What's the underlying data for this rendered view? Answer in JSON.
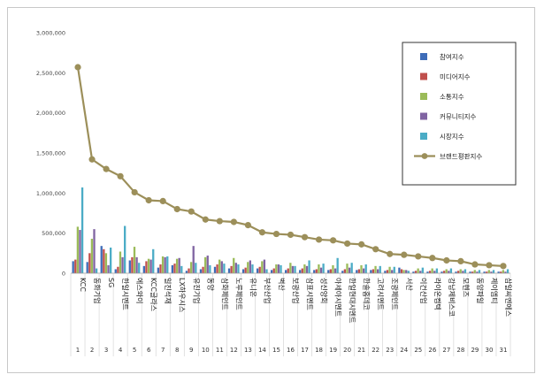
{
  "chart_data": {
    "type": "bar",
    "title": "",
    "xlabel": "",
    "ylabel": "",
    "ylim": [
      0,
      3000000
    ],
    "y_ticks": [
      "0",
      "500,000",
      "1,000,000",
      "1,500,000",
      "2,000,000",
      "2,500,000",
      "3,000,000"
    ],
    "y_tick_values": [
      0,
      500000,
      1000000,
      1500000,
      2000000,
      2500000,
      3000000
    ],
    "grid": false,
    "legend_position": "top-right",
    "indices": [
      "1",
      "2",
      "3",
      "4",
      "5",
      "6",
      "7",
      "8",
      "9",
      "10",
      "11",
      "12",
      "13",
      "14",
      "15",
      "16",
      "17",
      "18",
      "19",
      "20",
      "21",
      "22",
      "23",
      "24",
      "25",
      "26",
      "27",
      "28",
      "29",
      "30",
      "31"
    ],
    "categories": [
      "KCC",
      "동화기업",
      "SG",
      "한일시멘트",
      "에스와이",
      "KCC글라스",
      "일진석재",
      "LX하우시스",
      "유진기업",
      "동양",
      "삼화페인트",
      "노루페인트",
      "유니온",
      "부산산업",
      "벽산",
      "보광산업",
      "삼표시멘트",
      "성신양회",
      "아세아시멘트",
      "한일현대시멘트",
      "한솔홈데코",
      "고려시멘트",
      "조광페인트",
      "서산",
      "이건산업",
      "라이온켐텍",
      "강남제비스코",
      "모헨즈",
      "동양파일",
      "제이엠티",
      "삼일씨엔에스"
    ],
    "series": [
      {
        "name": "참여지수",
        "kind": "bar",
        "color": "#3e6cb8",
        "values": [
          150000,
          140000,
          340000,
          50000,
          160000,
          90000,
          70000,
          100000,
          30000,
          50000,
          80000,
          60000,
          50000,
          60000,
          40000,
          40000,
          40000,
          40000,
          40000,
          30000,
          40000,
          40000,
          30000,
          70000,
          20000,
          20000,
          20000,
          20000,
          20000,
          20000,
          20000
        ]
      },
      {
        "name": "미디어지수",
        "kind": "bar",
        "color": "#c0504d",
        "values": [
          170000,
          250000,
          300000,
          80000,
          200000,
          150000,
          110000,
          120000,
          60000,
          80000,
          110000,
          90000,
          70000,
          80000,
          60000,
          60000,
          60000,
          50000,
          50000,
          50000,
          50000,
          50000,
          40000,
          50000,
          30000,
          30000,
          30000,
          30000,
          20000,
          20000,
          20000
        ]
      },
      {
        "name": "소통지수",
        "kind": "bar",
        "color": "#9bbb59",
        "values": [
          580000,
          430000,
          250000,
          270000,
          330000,
          180000,
          210000,
          180000,
          140000,
          200000,
          170000,
          190000,
          140000,
          150000,
          110000,
          130000,
          110000,
          110000,
          100000,
          120000,
          100000,
          90000,
          80000,
          40000,
          60000,
          60000,
          50000,
          50000,
          40000,
          40000,
          40000
        ]
      },
      {
        "name": "커뮤니티지수",
        "kind": "bar",
        "color": "#8064a2",
        "values": [
          540000,
          550000,
          100000,
          200000,
          200000,
          170000,
          200000,
          190000,
          340000,
          220000,
          150000,
          130000,
          160000,
          170000,
          110000,
          90000,
          90000,
          70000,
          60000,
          70000,
          60000,
          50000,
          40000,
          40000,
          30000,
          30000,
          30000,
          30000,
          20000,
          20000,
          20000
        ]
      },
      {
        "name": "시장지수",
        "kind": "bar",
        "color": "#4bacc6",
        "values": [
          1070000,
          60000,
          320000,
          590000,
          130000,
          300000,
          210000,
          90000,
          130000,
          100000,
          120000,
          110000,
          110000,
          50000,
          100000,
          90000,
          160000,
          120000,
          190000,
          130000,
          110000,
          90000,
          80000,
          30000,
          70000,
          60000,
          60000,
          50000,
          40000,
          40000,
          50000
        ]
      },
      {
        "name": "브랜드평판지수",
        "kind": "line",
        "color": "#9c8f5a",
        "values": [
          2570000,
          1420000,
          1300000,
          1210000,
          1010000,
          910000,
          900000,
          800000,
          770000,
          670000,
          650000,
          640000,
          600000,
          510000,
          490000,
          480000,
          450000,
          420000,
          410000,
          370000,
          360000,
          300000,
          240000,
          230000,
          210000,
          190000,
          160000,
          150000,
          110000,
          100000,
          90000
        ]
      }
    ]
  }
}
